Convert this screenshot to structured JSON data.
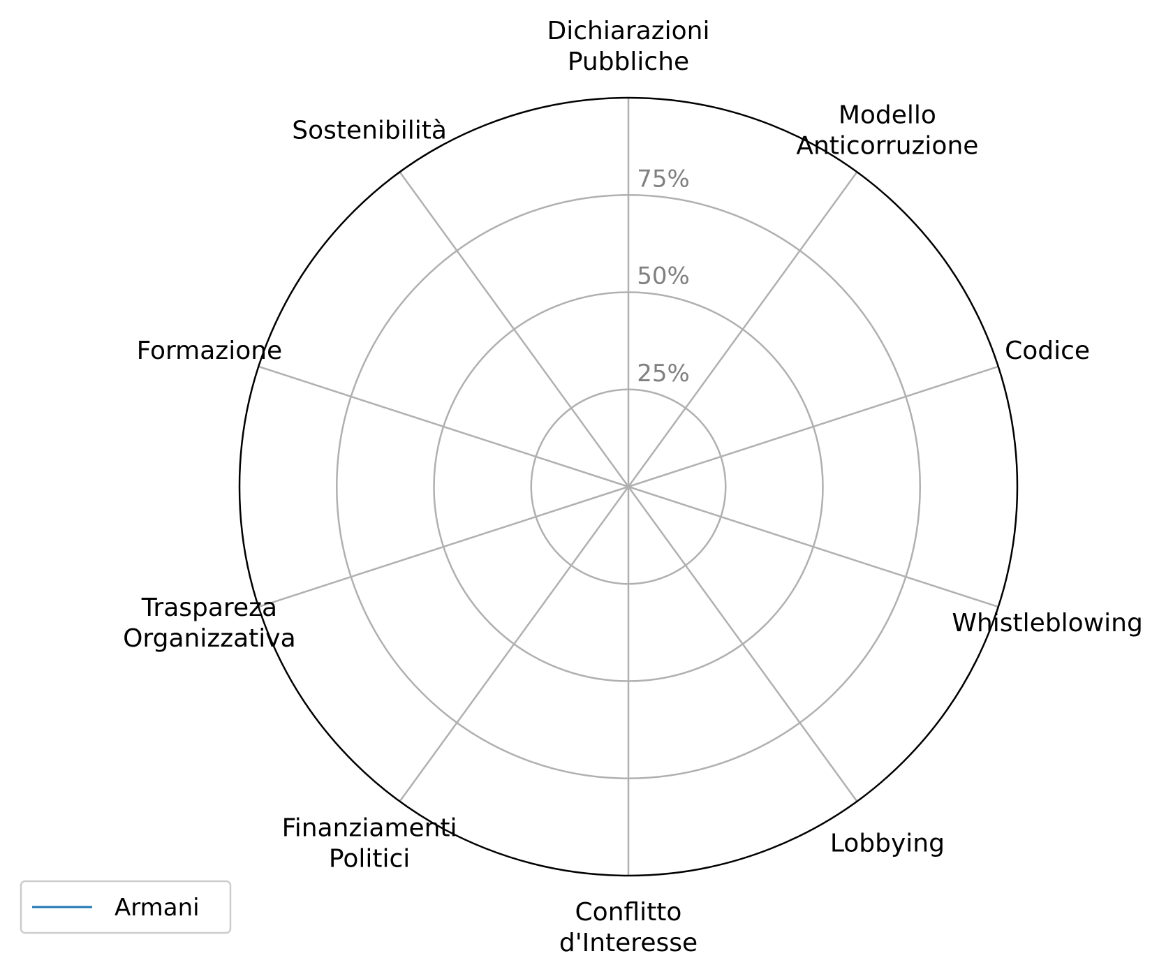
{
  "chart_data": {
    "type": "radar",
    "categories": [
      [
        "Dichiarazioni",
        "Pubbliche"
      ],
      [
        "Modello",
        "Anticorruzione"
      ],
      [
        "Codice"
      ],
      [
        "Whistleblowing"
      ],
      [
        "Lobbying"
      ],
      [
        "Conflitto",
        "d'Interesse"
      ],
      [
        "Finanziamenti",
        "Politici"
      ],
      [
        "Traspareza",
        "Organizzativa"
      ],
      [
        "Formazione"
      ],
      [
        "Sostenibilità"
      ]
    ],
    "rlim": [
      0,
      100
    ],
    "rticks": [
      25,
      50,
      75
    ],
    "rtick_labels": [
      "25%",
      "50%",
      "75%"
    ],
    "grid": true,
    "series": [
      {
        "name": "Armani",
        "color": "#1f77b4",
        "values": [
          0,
          0,
          0,
          0,
          0,
          0,
          0,
          0,
          0,
          0
        ]
      }
    ],
    "legend": {
      "placement": "lower-left"
    }
  }
}
